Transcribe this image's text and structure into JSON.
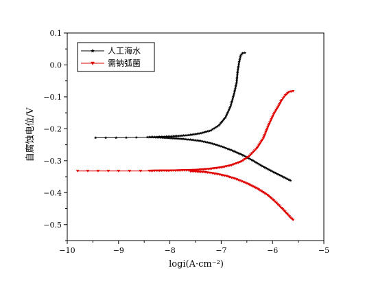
{
  "chart_data": {
    "type": "line",
    "xlabel": "logi(A·cm⁻²)",
    "ylabel": "自腐蚀电位/V",
    "xlim": [
      -10,
      -5
    ],
    "ylim": [
      -0.55,
      0.1
    ],
    "x_ticks": [
      -10,
      -9,
      -8,
      -7,
      -6,
      -5
    ],
    "x_tick_labels": [
      "−10",
      "−9",
      "−8",
      "−7",
      "−6",
      "−5"
    ],
    "y_ticks": [
      0.1,
      0.0,
      -0.1,
      -0.2,
      -0.3,
      -0.4,
      -0.5
    ],
    "y_tick_labels": [
      "0.1",
      "0.0",
      "−0.1",
      "−0.2",
      "−0.3",
      "−0.4",
      "−0.5"
    ],
    "grid": false,
    "legend_position": "top-left",
    "colors": {
      "axis": "#000000",
      "series_1": "#000000",
      "series_2": "#e00000"
    },
    "series": [
      {
        "name": "人工海水",
        "marker": "star",
        "anodic": [
          [
            -9.45,
            -0.228
          ],
          [
            -9.25,
            -0.228
          ],
          [
            -8.98,
            -0.228
          ],
          [
            -8.72,
            -0.227
          ],
          [
            -8.55,
            -0.227
          ],
          [
            -8.4,
            -0.226
          ],
          [
            -8.2,
            -0.225
          ],
          [
            -8.0,
            -0.224
          ],
          [
            -7.8,
            -0.222
          ],
          [
            -7.6,
            -0.219
          ],
          [
            -7.4,
            -0.214
          ],
          [
            -7.2,
            -0.205
          ],
          [
            -7.05,
            -0.19
          ],
          [
            -6.92,
            -0.165
          ],
          [
            -6.82,
            -0.13
          ],
          [
            -6.75,
            -0.09
          ],
          [
            -6.7,
            -0.055
          ],
          [
            -6.68,
            -0.02
          ],
          [
            -6.65,
            0.01
          ],
          [
            -6.62,
            0.03
          ],
          [
            -6.58,
            0.037
          ],
          [
            -6.54,
            0.038
          ]
        ],
        "cathodic": [
          [
            -8.4,
            -0.226
          ],
          [
            -8.2,
            -0.227
          ],
          [
            -8.0,
            -0.229
          ],
          [
            -7.8,
            -0.231
          ],
          [
            -7.6,
            -0.234
          ],
          [
            -7.4,
            -0.238
          ],
          [
            -7.2,
            -0.245
          ],
          [
            -7.0,
            -0.255
          ],
          [
            -6.8,
            -0.267
          ],
          [
            -6.6,
            -0.281
          ],
          [
            -6.4,
            -0.298
          ],
          [
            -6.2,
            -0.317
          ],
          [
            -6.0,
            -0.334
          ],
          [
            -5.8,
            -0.35
          ],
          [
            -5.65,
            -0.362
          ]
        ]
      },
      {
        "name": "需钠弧菌",
        "marker": "triangle-down",
        "anodic": [
          [
            -9.8,
            -0.332
          ],
          [
            -9.4,
            -0.332
          ],
          [
            -9.0,
            -0.332
          ],
          [
            -8.75,
            -0.332
          ],
          [
            -8.5,
            -0.332
          ],
          [
            -8.2,
            -0.331
          ],
          [
            -8.0,
            -0.331
          ],
          [
            -7.75,
            -0.33
          ],
          [
            -7.5,
            -0.329
          ],
          [
            -7.25,
            -0.326
          ],
          [
            -7.0,
            -0.321
          ],
          [
            -6.8,
            -0.314
          ],
          [
            -6.6,
            -0.302
          ],
          [
            -6.45,
            -0.285
          ],
          [
            -6.3,
            -0.26
          ],
          [
            -6.18,
            -0.23
          ],
          [
            -6.08,
            -0.19
          ],
          [
            -5.98,
            -0.155
          ],
          [
            -5.88,
            -0.128
          ],
          [
            -5.82,
            -0.11
          ],
          [
            -5.75,
            -0.095
          ],
          [
            -5.68,
            -0.085
          ],
          [
            -5.6,
            -0.082
          ]
        ],
        "cathodic": [
          [
            -7.6,
            -0.333
          ],
          [
            -7.3,
            -0.336
          ],
          [
            -7.1,
            -0.341
          ],
          [
            -6.9,
            -0.348
          ],
          [
            -6.7,
            -0.358
          ],
          [
            -6.5,
            -0.371
          ],
          [
            -6.3,
            -0.387
          ],
          [
            -6.1,
            -0.407
          ],
          [
            -5.95,
            -0.428
          ],
          [
            -5.8,
            -0.452
          ],
          [
            -5.65,
            -0.478
          ],
          [
            -5.6,
            -0.485
          ]
        ]
      }
    ]
  }
}
